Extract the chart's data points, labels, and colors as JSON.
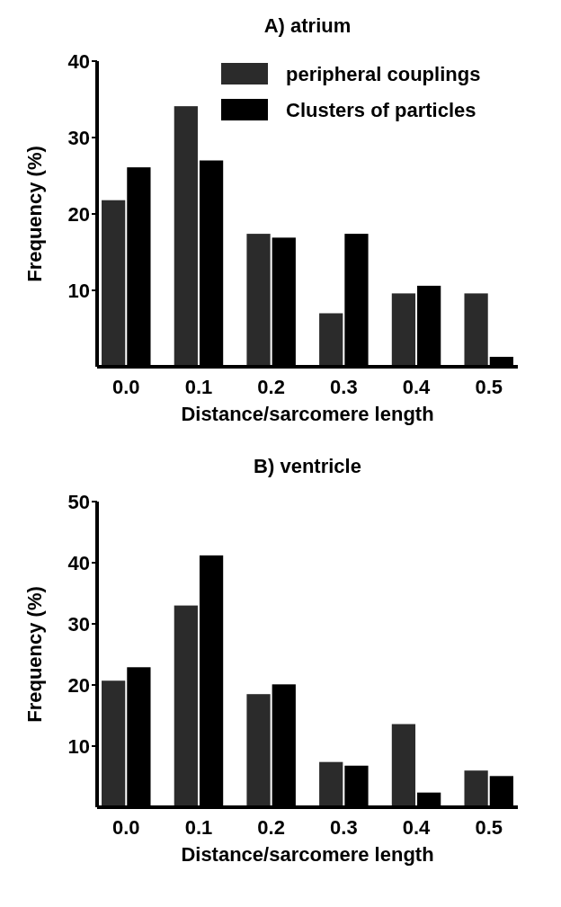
{
  "chart_data": [
    {
      "type": "bar",
      "title": "A) atrium",
      "xlabel": "Distance/sarcomere length",
      "ylabel": "Frequency (%)",
      "categories": [
        "0.0",
        "0.1",
        "0.2",
        "0.3",
        "0.4",
        "0.5"
      ],
      "series": [
        {
          "name": "peripheral couplings",
          "color": "#2b2b2b",
          "values": [
            21.8,
            34.1,
            17.4,
            7.0,
            9.6,
            9.6
          ]
        },
        {
          "name": "Clusters of particles",
          "color": "#000000",
          "values": [
            26.1,
            27.0,
            16.9,
            17.4,
            10.6,
            1.3
          ]
        }
      ],
      "ylim": [
        0,
        40
      ],
      "yticks": [
        10,
        20,
        30,
        40
      ],
      "grid": false,
      "legend": "top right"
    },
    {
      "type": "bar",
      "title": "B) ventricle",
      "xlabel": "Distance/sarcomere length",
      "ylabel": "Frequency (%)",
      "categories": [
        "0.0",
        "0.1",
        "0.2",
        "0.3",
        "0.4",
        "0.5"
      ],
      "series": [
        {
          "color": "#2b2b2b",
          "values": [
            20.7,
            33.0,
            18.5,
            7.4,
            13.6,
            6.0
          ]
        },
        {
          "color": "#000000",
          "values": [
            22.9,
            41.2,
            20.1,
            6.8,
            2.4,
            5.1
          ]
        }
      ],
      "ylim": [
        0,
        50
      ],
      "yticks": [
        10,
        20,
        30,
        40,
        50
      ],
      "grid": false,
      "legend": false
    }
  ]
}
